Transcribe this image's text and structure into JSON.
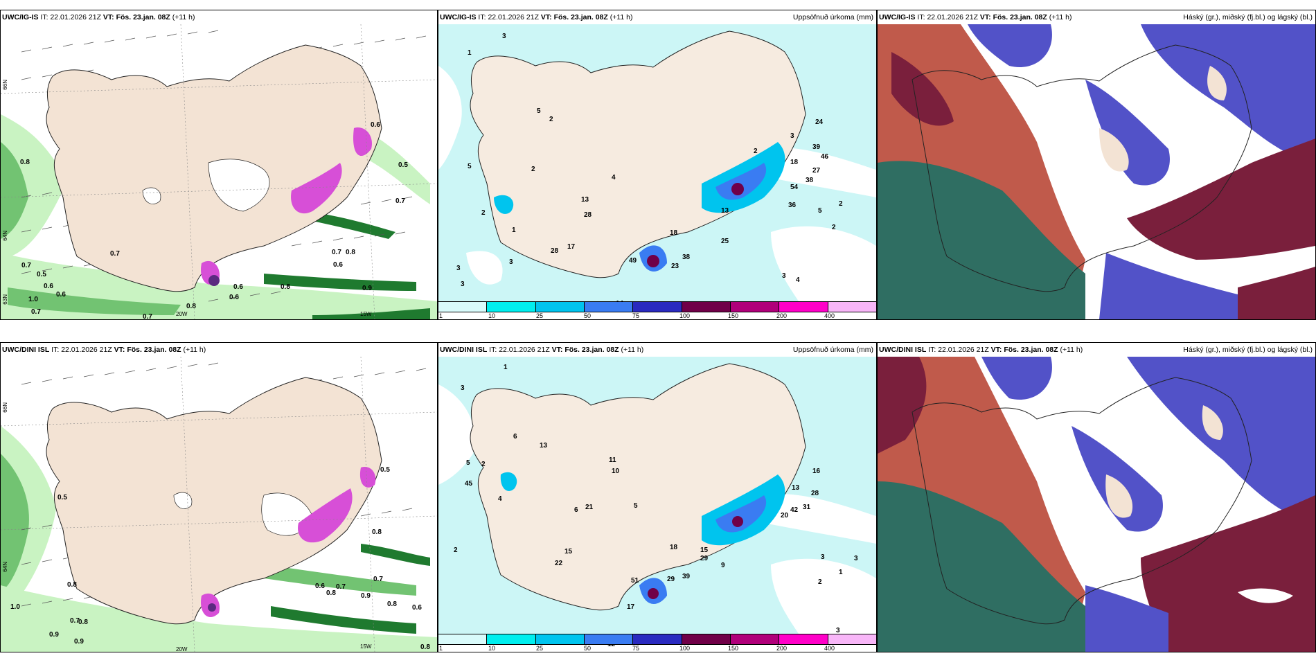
{
  "rows": [
    {
      "model": "UWC/IG-IS",
      "it_label": "IT:",
      "it_value": "22.01.2026 21Z",
      "vt_label": "VT:",
      "vt_value": "Fös. 23.jan. 08Z",
      "lead": "(+11 h)"
    },
    {
      "model": "UWC/DINI ISL",
      "it_label": "IT:",
      "it_value": "22.01.2026 21Z",
      "vt_label": "VT:",
      "vt_value": "Fös. 23.jan. 08Z",
      "lead": "(+11 h)"
    }
  ],
  "precip_title": "Uppsöfnuð úrkoma (mm)",
  "cloud_title": "Háský (gr.), miðský (fj.bl.) og lágský (bl.)",
  "colorbar": {
    "labels": [
      "1",
      "10",
      "25",
      "50",
      "75",
      "100",
      "150",
      "200",
      "400"
    ],
    "colors": [
      "#d9fbfb",
      "#00eeee",
      "#00c4ee",
      "#3a7cf2",
      "#2a2ac0",
      "#700048",
      "#b0007a",
      "#ff00c8",
      "#f8b6f8"
    ]
  },
  "axis_labels": {
    "lat_top": "66N",
    "lat_mid": "64N",
    "lat_low": "63N",
    "lon_20": "20W",
    "lon_15": "15W"
  },
  "wind_numbers_top": [
    "0.8",
    "0.7",
    "0.7",
    "0.5",
    "0.6",
    "0.6",
    "1.0",
    "0.7",
    "0.7",
    "0.8",
    "0.6",
    "0.6",
    "0.8",
    "0.7",
    "0.6",
    "0.8",
    "0.9",
    "0.6",
    "0.7",
    "0.5"
  ],
  "wind_numbers_bottom": [
    "0.5",
    "0.8",
    "1.0",
    "0.7",
    "0.8",
    "0.9",
    "0.9",
    "0.6",
    "0.7",
    "0.8",
    "0.6",
    "0.8",
    "0.9",
    "0.8",
    "0.7",
    "0.5",
    "0.8"
  ],
  "precip_numbers_top": [
    "1",
    "3",
    "5",
    "2",
    "3",
    "3",
    "1",
    "5",
    "2",
    "3",
    "2",
    "13",
    "28",
    "4",
    "17",
    "28",
    "18",
    "38",
    "23",
    "49",
    "14",
    "25",
    "13",
    "2",
    "3",
    "24",
    "39",
    "46",
    "27",
    "36",
    "54",
    "38",
    "18",
    "5",
    "2",
    "2",
    "4",
    "3"
  ],
  "precip_numbers_bottom": [
    "1",
    "3",
    "5",
    "2",
    "4",
    "45",
    "2",
    "6",
    "13",
    "11",
    "10",
    "5",
    "21",
    "6",
    "15",
    "22",
    "18",
    "29",
    "39",
    "51",
    "17",
    "12",
    "15",
    "29",
    "16",
    "13",
    "28",
    "42",
    "31",
    "20",
    "9",
    "3",
    "3",
    "1",
    "2",
    "3"
  ],
  "colors": {
    "land": "#f3e3d4",
    "sea_precip": "#ccf6f6",
    "wind_green_light": "#c9f3c2",
    "wind_green_mid": "#72c372",
    "wind_green_dark": "#1f7a2f",
    "magenta": "#d74fd7",
    "cloud_red": "#c05a4b",
    "cloud_darkred": "#7a1f3c",
    "cloud_blue": "#5252c8",
    "cloud_teal": "#2f6e62"
  }
}
